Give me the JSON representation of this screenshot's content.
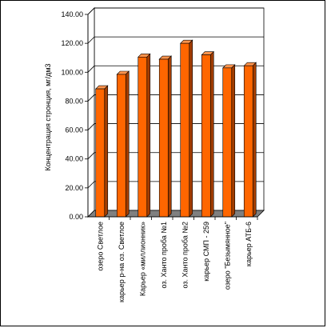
{
  "chart_data": {
    "type": "bar",
    "title": "",
    "xlabel": "",
    "ylabel": "Концентрация стронция, мг/дм3",
    "ylim": [
      0,
      140
    ],
    "yticks": [
      "0.00",
      "20.00",
      "40.00",
      "60.00",
      "80.00",
      "100.00",
      "120.00",
      "140.00"
    ],
    "grid": true,
    "legend": "none",
    "categories": [
      "озеро Светлое",
      "карьер р-на оз. Светлое",
      "Карьер «миллионник»",
      "оз. Ханто проба №1",
      "оз. Ханто проба №2",
      "карьер СМП - 259",
      "озеро \"Безымянное\"",
      "карьер АТБ-6"
    ],
    "series": [
      {
        "values": [
          88.5,
          98.5,
          110.5,
          109.0,
          120.0,
          112.0,
          103.0,
          104.5
        ]
      }
    ],
    "colors": {
      "bar_front": "#ff6600",
      "bar_top": "#ff944d",
      "bar_side": "#a33d00",
      "wall": "#ffffff",
      "floor": "#808080",
      "grid": "#000000"
    }
  }
}
